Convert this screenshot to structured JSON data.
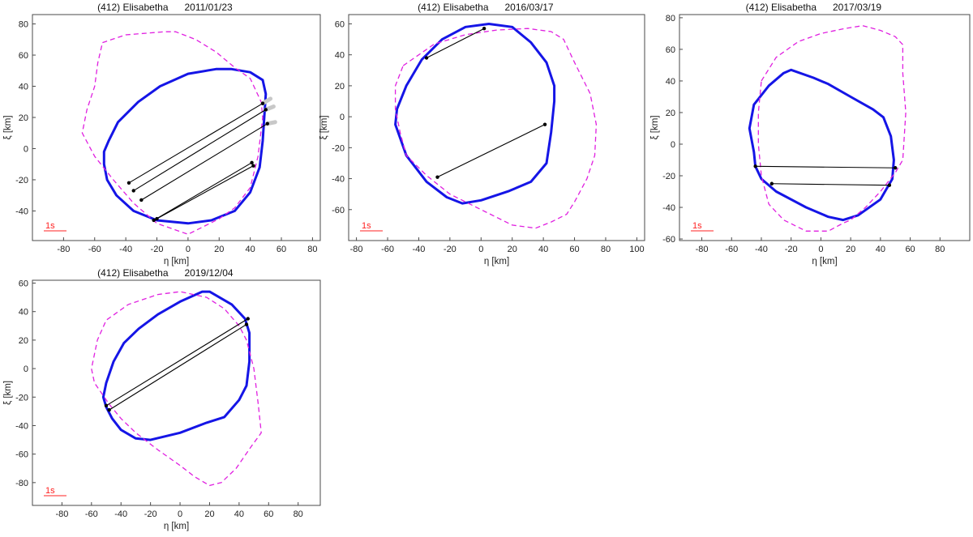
{
  "colors": {
    "fit": "#1515e6",
    "alt": "#e020e0",
    "chord": "#000000",
    "scale": "#ff2020"
  },
  "chart_data": [
    {
      "type": "line",
      "object": "(412) Elisabetha",
      "date": "2011/01/23",
      "xlabel": "η [km]",
      "ylabel": "ξ [km]",
      "xlim": [
        -100,
        85
      ],
      "ylim": [
        -59,
        86
      ],
      "xticks": [
        -80,
        -60,
        -40,
        -20,
        0,
        20,
        40,
        60,
        80
      ],
      "yticks": [
        -40,
        -20,
        0,
        20,
        40,
        60,
        80
      ],
      "scale_label": "1s",
      "series": [
        {
          "style": "solid",
          "points": [
            [
              -54,
              -10
            ],
            [
              -52,
              -20
            ],
            [
              -46,
              -30
            ],
            [
              -35,
              -40
            ],
            [
              -20,
              -46
            ],
            [
              0,
              -48
            ],
            [
              15,
              -46
            ],
            [
              30,
              -40
            ],
            [
              40,
              -28
            ],
            [
              46,
              -12
            ],
            [
              48,
              5
            ],
            [
              49,
              20
            ],
            [
              50,
              35
            ],
            [
              48,
              44
            ],
            [
              40,
              49
            ],
            [
              28,
              51
            ],
            [
              18,
              51
            ],
            [
              0,
              48
            ],
            [
              -18,
              40
            ],
            [
              -32,
              30
            ],
            [
              -45,
              17
            ],
            [
              -51,
              5
            ],
            [
              -54,
              -2
            ]
          ]
        },
        {
          "style": "dashed",
          "points": [
            [
              -55,
              68
            ],
            [
              -40,
              73
            ],
            [
              -15,
              75
            ],
            [
              -8,
              75
            ],
            [
              5,
              70
            ],
            [
              18,
              62
            ],
            [
              30,
              52
            ],
            [
              40,
              45
            ],
            [
              47,
              30
            ],
            [
              48,
              20
            ],
            [
              45,
              -5
            ],
            [
              40,
              -25
            ],
            [
              30,
              -38
            ],
            [
              20,
              -45
            ],
            [
              0,
              -55
            ],
            [
              -20,
              -48
            ],
            [
              -35,
              -35
            ],
            [
              -48,
              -20
            ],
            [
              -60,
              -5
            ],
            [
              -68,
              10
            ],
            [
              -65,
              25
            ],
            [
              -60,
              40
            ],
            [
              -58,
              55
            ],
            [
              -55,
              68
            ]
          ]
        }
      ],
      "chords": [
        {
          "start": [
            -38,
            -22
          ],
          "end": [
            48,
            29
          ],
          "ext": [
            53,
            32
          ]
        },
        {
          "start": [
            -35,
            -27
          ],
          "end": [
            50,
            25
          ],
          "ext": [
            55,
            27
          ]
        },
        {
          "start": [
            -30,
            -33
          ],
          "end": [
            51,
            16
          ],
          "ext": [
            56,
            17
          ]
        },
        {
          "start": [
            -22,
            -46
          ],
          "end": [
            41,
            -9
          ]
        },
        {
          "start": [
            -20,
            -45
          ],
          "end": [
            42,
            -11
          ]
        }
      ]
    },
    {
      "type": "line",
      "object": "(412) Elisabetha",
      "date": "2016/03/17",
      "xlabel": "η [km]",
      "ylabel": "ξ [km]",
      "xlim": [
        -85,
        105
      ],
      "ylim": [
        -80,
        66
      ],
      "xticks": [
        -80,
        -60,
        -40,
        -20,
        0,
        20,
        40,
        60,
        80,
        100
      ],
      "yticks": [
        -60,
        -40,
        -20,
        0,
        20,
        40,
        60
      ],
      "scale_label": "1s",
      "series": [
        {
          "style": "solid",
          "points": [
            [
              -55,
              -5
            ],
            [
              -48,
              -25
            ],
            [
              -35,
              -42
            ],
            [
              -22,
              -52
            ],
            [
              -12,
              -56
            ],
            [
              0,
              -54
            ],
            [
              18,
              -48
            ],
            [
              32,
              -42
            ],
            [
              42,
              -30
            ],
            [
              45,
              -10
            ],
            [
              47,
              10
            ],
            [
              47,
              20
            ],
            [
              42,
              35
            ],
            [
              32,
              48
            ],
            [
              20,
              58
            ],
            [
              5,
              60
            ],
            [
              -10,
              58
            ],
            [
              -25,
              50
            ],
            [
              -38,
              37
            ],
            [
              -48,
              20
            ],
            [
              -54,
              5
            ],
            [
              -55,
              -5
            ]
          ]
        },
        {
          "style": "dashed",
          "points": [
            [
              -50,
              33
            ],
            [
              -30,
              47
            ],
            [
              -10,
              53
            ],
            [
              10,
              56
            ],
            [
              30,
              57
            ],
            [
              45,
              55
            ],
            [
              53,
              50
            ],
            [
              60,
              35
            ],
            [
              70,
              15
            ],
            [
              74,
              -5
            ],
            [
              73,
              -25
            ],
            [
              68,
              -40
            ],
            [
              60,
              -55
            ],
            [
              55,
              -63
            ],
            [
              45,
              -68
            ],
            [
              35,
              -72
            ],
            [
              20,
              -70
            ],
            [
              0,
              -60
            ],
            [
              -20,
              -50
            ],
            [
              -35,
              -38
            ],
            [
              -48,
              -25
            ],
            [
              -52,
              -10
            ],
            [
              -55,
              5
            ],
            [
              -55,
              20
            ],
            [
              -50,
              33
            ]
          ]
        }
      ],
      "chords": [
        {
          "start": [
            -35,
            38
          ],
          "end": [
            2,
            57
          ]
        },
        {
          "start": [
            -28,
            -39
          ],
          "end": [
            41,
            -5
          ]
        }
      ]
    },
    {
      "type": "line",
      "object": "(412) Elisabetha",
      "date": "2017/03/19",
      "xlabel": "η [km]",
      "ylabel": "ξ [km]",
      "xlim": [
        -95,
        100
      ],
      "ylim": [
        -61,
        82
      ],
      "xticks": [
        -80,
        -60,
        -40,
        -20,
        0,
        20,
        40,
        60,
        80
      ],
      "yticks": [
        -60,
        -40,
        -20,
        0,
        20,
        40,
        60,
        80
      ],
      "scale_label": "1s",
      "series": [
        {
          "style": "solid",
          "points": [
            [
              -48,
              10
            ],
            [
              -45,
              -5
            ],
            [
              -44,
              -14
            ],
            [
              -40,
              -22
            ],
            [
              -30,
              -30
            ],
            [
              -10,
              -40
            ],
            [
              5,
              -46
            ],
            [
              15,
              -48
            ],
            [
              25,
              -45
            ],
            [
              40,
              -35
            ],
            [
              48,
              -22
            ],
            [
              49,
              -10
            ],
            [
              47,
              5
            ],
            [
              42,
              17
            ],
            [
              35,
              22
            ],
            [
              20,
              30
            ],
            [
              5,
              38
            ],
            [
              -5,
              42
            ],
            [
              -20,
              47
            ],
            [
              -25,
              45
            ],
            [
              -35,
              37
            ],
            [
              -45,
              25
            ],
            [
              -48,
              10
            ]
          ]
        },
        {
          "style": "dashed",
          "points": [
            [
              -40,
              40
            ],
            [
              -30,
              55
            ],
            [
              -15,
              65
            ],
            [
              0,
              70
            ],
            [
              15,
              73
            ],
            [
              28,
              75
            ],
            [
              40,
              72
            ],
            [
              50,
              68
            ],
            [
              55,
              63
            ],
            [
              55,
              45
            ],
            [
              57,
              20
            ],
            [
              55,
              -10
            ],
            [
              50,
              -18
            ],
            [
              40,
              -30
            ],
            [
              30,
              -40
            ],
            [
              20,
              -48
            ],
            [
              15,
              -50
            ],
            [
              5,
              -55
            ],
            [
              -10,
              -55
            ],
            [
              -25,
              -48
            ],
            [
              -35,
              -38
            ],
            [
              -40,
              -20
            ],
            [
              -42,
              0
            ],
            [
              -42,
              20
            ],
            [
              -40,
              40
            ]
          ]
        }
      ],
      "chords": [
        {
          "start": [
            -44,
            -14
          ],
          "end": [
            50,
            -15
          ]
        },
        {
          "start": [
            -33,
            -25
          ],
          "end": [
            46,
            -26
          ]
        }
      ]
    },
    {
      "type": "line",
      "object": "(412) Elisabetha",
      "date": "2019/12/04",
      "xlabel": "η [km]",
      "ylabel": "ξ [km]",
      "xlim": [
        -100,
        95
      ],
      "ylim": [
        -96,
        62
      ],
      "xticks": [
        -80,
        -60,
        -40,
        -20,
        0,
        20,
        40,
        60,
        80
      ],
      "yticks": [
        -80,
        -60,
        -40,
        -20,
        0,
        20,
        40,
        60
      ],
      "scale_label": "1s",
      "series": [
        {
          "style": "solid",
          "points": [
            [
              -50,
              -27
            ],
            [
              -46,
              -35
            ],
            [
              -40,
              -43
            ],
            [
              -30,
              -49
            ],
            [
              -20,
              -50
            ],
            [
              0,
              -45
            ],
            [
              18,
              -38
            ],
            [
              30,
              -34
            ],
            [
              40,
              -22
            ],
            [
              45,
              -12
            ],
            [
              47,
              5
            ],
            [
              47,
              25
            ],
            [
              44,
              35
            ],
            [
              35,
              45
            ],
            [
              20,
              54
            ],
            [
              15,
              54
            ],
            [
              0,
              47
            ],
            [
              -15,
              38
            ],
            [
              -28,
              28
            ],
            [
              -38,
              18
            ],
            [
              -45,
              5
            ],
            [
              -50,
              -10
            ],
            [
              -52,
              -20
            ],
            [
              -50,
              -27
            ]
          ]
        },
        {
          "style": "dashed",
          "points": [
            [
              -48,
              -25
            ],
            [
              -40,
              -35
            ],
            [
              -30,
              -45
            ],
            [
              -15,
              -57
            ],
            [
              0,
              -68
            ],
            [
              10,
              -76
            ],
            [
              20,
              -82
            ],
            [
              28,
              -80
            ],
            [
              38,
              -70
            ],
            [
              48,
              -55
            ],
            [
              55,
              -45
            ],
            [
              53,
              -25
            ],
            [
              50,
              0
            ],
            [
              45,
              20
            ],
            [
              40,
              30
            ],
            [
              30,
              42
            ],
            [
              18,
              50
            ],
            [
              0,
              54
            ],
            [
              -15,
              52
            ],
            [
              -35,
              45
            ],
            [
              -50,
              34
            ],
            [
              -56,
              20
            ],
            [
              -60,
              0
            ],
            [
              -58,
              -10
            ],
            [
              -48,
              -25
            ]
          ]
        }
      ],
      "chords": [
        {
          "start": [
            -50,
            -26
          ],
          "end": [
            46,
            35
          ]
        },
        {
          "start": [
            -48,
            -29
          ],
          "end": [
            45,
            31
          ]
        }
      ]
    }
  ]
}
